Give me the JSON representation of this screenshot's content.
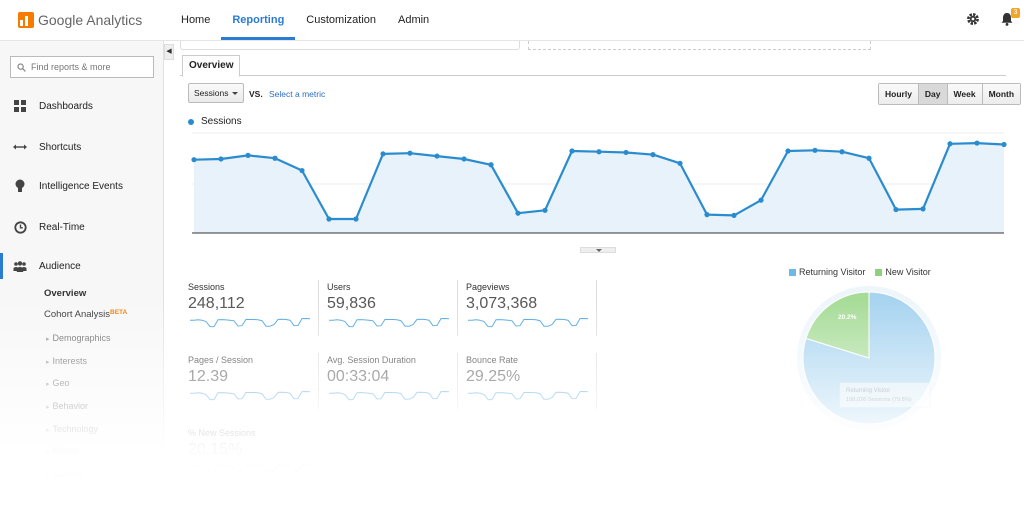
{
  "app": {
    "logo_text": "Google Analytics"
  },
  "nav": {
    "items": [
      "Home",
      "Reporting",
      "Customization",
      "Admin"
    ],
    "active": "Reporting"
  },
  "notifications": {
    "count": "3"
  },
  "sidebar": {
    "search_placeholder": "Find reports & more",
    "items": [
      {
        "label": "Dashboards",
        "icon": "grid-icon"
      },
      {
        "label": "Shortcuts",
        "icon": "arrows-icon"
      },
      {
        "label": "Intelligence Events",
        "icon": "bulb-icon"
      },
      {
        "label": "Real-Time",
        "icon": "clock-icon"
      },
      {
        "label": "Audience",
        "icon": "people-icon"
      }
    ],
    "audience_sub": [
      {
        "label": "Overview"
      },
      {
        "label": "Cohort Analysis",
        "badge": "BETA"
      }
    ],
    "audience_subsub": [
      "Demographics",
      "Interests",
      "Geo",
      "Behavior",
      "Technology",
      "Mobile",
      "Custom"
    ]
  },
  "main": {
    "tab": "Overview",
    "metric_select": "Sessions",
    "vs_label": "VS.",
    "select_metric_label": "Select a metric",
    "periods": [
      "Hourly",
      "Day",
      "Week",
      "Month"
    ],
    "selected_period": "Day",
    "legend_label": "Sessions",
    "accent": "#2a8ccf"
  },
  "chart_data": {
    "type": "line",
    "series": [
      {
        "name": "Sessions",
        "values": [
          100,
          101,
          106,
          102,
          85,
          18,
          18,
          108,
          109,
          105,
          101,
          93,
          26,
          30,
          112,
          111,
          110,
          107,
          95,
          24,
          23,
          44,
          112,
          113,
          111,
          102,
          31,
          32,
          122,
          123,
          121
        ]
      }
    ],
    "grid": false
  },
  "metrics": [
    {
      "label": "Sessions",
      "value": "248,112"
    },
    {
      "label": "Users",
      "value": "59,836"
    },
    {
      "label": "Pageviews",
      "value": "3,073,368"
    },
    {
      "label": "Pages / Session",
      "value": "12.39"
    },
    {
      "label": "Avg. Session Duration",
      "value": "00:33:04"
    },
    {
      "label": "Bounce Rate",
      "value": "29.25%"
    },
    {
      "label": "% New Sessions",
      "value": "20.15%"
    }
  ],
  "pie": {
    "legend": [
      {
        "label": "Returning Visitor",
        "color": "#6cb8e6"
      },
      {
        "label": "New Visitor",
        "color": "#8fd07c"
      }
    ],
    "new_pct": 0.202,
    "new_label": "20.2%",
    "tooltip_title": "Returning Visitor",
    "tooltip_text": "198,026 Sessions (79.8%)"
  }
}
